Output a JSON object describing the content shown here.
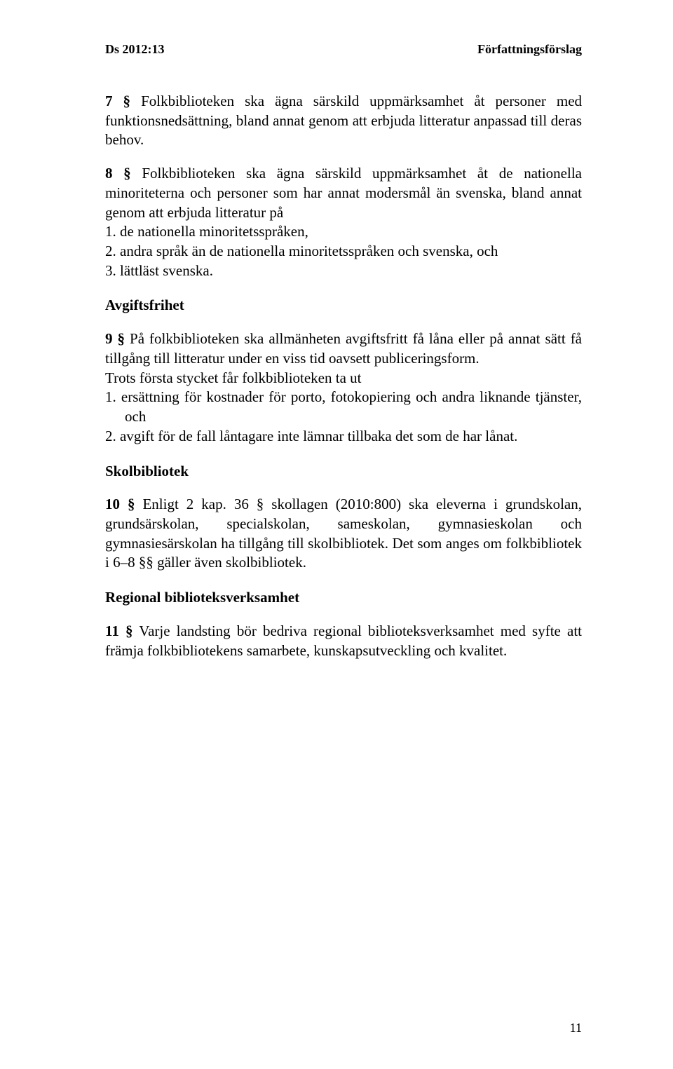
{
  "header": {
    "left": "Ds 2012:13",
    "right": "Författningsförslag"
  },
  "p7": {
    "num": "7 §",
    "text": "   Folkbiblioteken ska ägna särskild uppmärksamhet åt personer med funktionsnedsättning, bland annat genom att erbjuda litteratur anpassad till deras behov."
  },
  "p8": {
    "num": "8 §",
    "lead": "   Folkbiblioteken ska ägna särskild uppmärksamhet åt de nationella minoriteterna och personer som har annat modersmål än svenska, bland annat genom att erbjuda litteratur på",
    "items": {
      "a": "1.  de nationella minoritetsspråken,",
      "b": "2.  andra språk än de nationella minoritetsspråken och svenska, och",
      "c": "3.  lättläst svenska."
    }
  },
  "avgiftsfrihet": {
    "heading": "Avgiftsfrihet",
    "p9": {
      "num": "9 §",
      "lead": "   På folkbiblioteken ska allmänheten avgiftsfritt få låna eller på annat sätt få tillgång till litteratur under en viss tid oavsett publiceringsform.",
      "line2": "   Trots första stycket får folkbiblioteken ta ut",
      "items": {
        "a": "1.  ersättning för kostnader för porto, fotokopiering och andra liknande tjänster, och",
        "b": "2.  avgift för de fall låntagare inte lämnar tillbaka det som de har lånat."
      }
    }
  },
  "skolbibliotek": {
    "heading": "Skolbibliotek",
    "p10": {
      "num": "10 §",
      "text": "   Enligt 2 kap. 36 § skollagen (2010:800) ska eleverna i grundskolan, grundsärskolan, specialskolan, sameskolan, gymnasieskolan och gymnasiesärskolan ha tillgång till skolbibliotek. Det som anges om folkbibliotek i 6–8 §§ gäller även skolbibliotek."
    }
  },
  "regional": {
    "heading": "Regional biblioteksverksamhet",
    "p11": {
      "num": "11 §",
      "text": "   Varje landsting bör bedriva regional biblioteksverksamhet med syfte att främja folkbibliotekens samarbete, kunskapsutveckling och kvalitet."
    }
  },
  "pageNumber": "11"
}
